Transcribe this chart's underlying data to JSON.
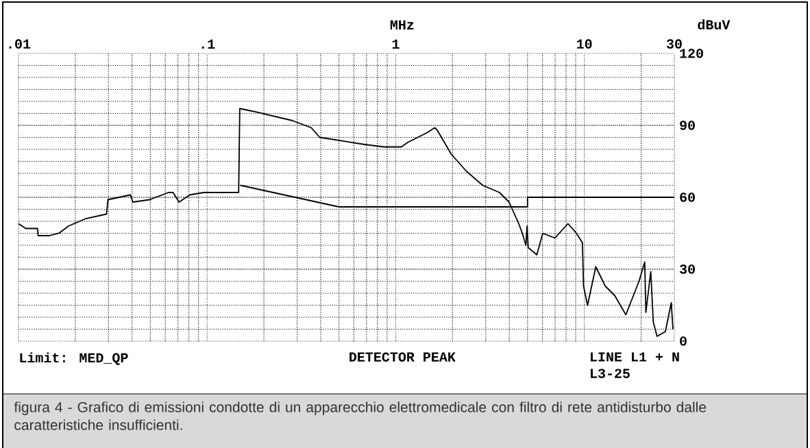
{
  "chart_data": {
    "type": "line",
    "xlabel": "MHz",
    "ylabel": "dBuV",
    "log": "x",
    "xlim": [
      0.01,
      30
    ],
    "ylim": [
      0,
      120
    ],
    "xticks": [
      {
        "value": 0.01,
        "label": ".01"
      },
      {
        "value": 0.1,
        "label": ".1"
      },
      1,
      10,
      30
    ],
    "yticks": [
      0,
      30,
      60,
      90,
      120
    ],
    "grid": true,
    "marker": "none",
    "line_style": "solid",
    "series": [
      {
        "color": "#000000",
        "x": [
          0.01,
          0.0109,
          0.0126,
          0.0127,
          0.0146,
          0.0164,
          0.0184,
          0.0226,
          0.0293,
          0.0298,
          0.0392,
          0.0404,
          0.0495,
          0.0624,
          0.066,
          0.071,
          0.081,
          0.096,
          0.147,
          0.149,
          0.172,
          0.283,
          0.357,
          0.395,
          0.687,
          0.869,
          1.07,
          1.165,
          1.47,
          1.61,
          1.66,
          1.97,
          2.36,
          2.89,
          3.55,
          3.99,
          4.49,
          4.69,
          4.9,
          4.97,
          5.04,
          5.6,
          6.02,
          6.98,
          8.19,
          9.08,
          9.77,
          9.9,
          10.4,
          11.5,
          12.9,
          14.5,
          16.6,
          19.5,
          20.9,
          21.2,
          22.5,
          23.2,
          24.3,
          26.9,
          28.9,
          29.5
        ],
        "values": [
          49,
          47,
          47,
          44,
          44,
          45,
          48,
          51,
          53,
          59,
          61,
          58,
          59,
          62,
          62,
          58,
          61,
          62,
          62,
          97,
          96,
          92,
          89,
          85,
          82,
          81,
          81,
          83,
          87,
          89,
          88,
          78,
          71,
          65,
          62,
          58,
          49,
          45,
          40,
          48,
          39,
          36,
          45,
          43,
          49,
          45,
          41,
          23,
          15,
          31,
          23,
          19,
          11,
          25,
          33,
          12,
          29,
          8,
          2,
          4,
          16,
          5
        ]
      },
      {
        "color": "#000000",
        "x": [
          0.15,
          0.5,
          5,
          5,
          30
        ],
        "values": [
          65,
          56,
          56,
          60,
          60
        ]
      }
    ],
    "annotations": [
      "Limit: MED_QP",
      "DETECTOR PEAK",
      "LINE L1 + N",
      "L3-25",
      "figura 4 - Grafico di emissioni condotte di un apparecchio elettromedicale con filtro di rete antidisturbo dalle caratteristiche insufficienti."
    ]
  }
}
